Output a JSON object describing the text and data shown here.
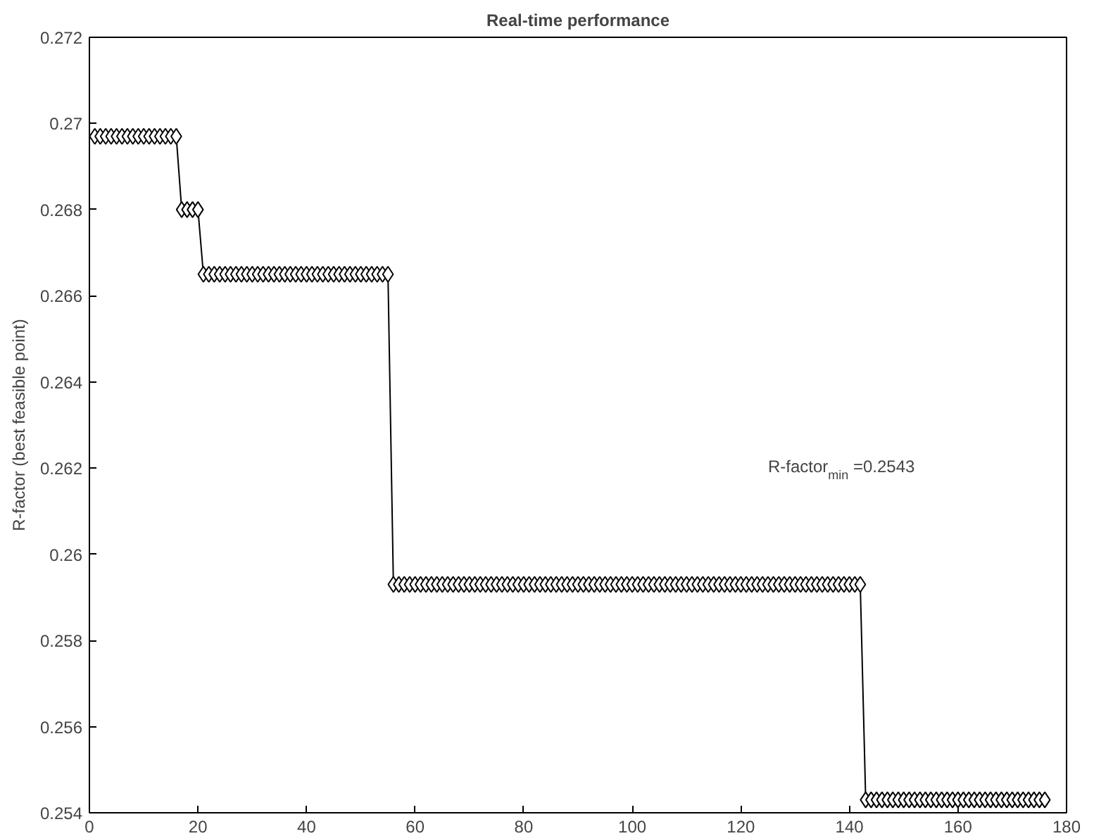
{
  "chart_data": {
    "type": "line",
    "title": "Real-time performance",
    "ylabel": "R-factor (best feasible point)",
    "x": [
      1,
      2,
      3,
      4,
      5,
      6,
      7,
      8,
      9,
      10,
      11,
      12,
      13,
      14,
      15,
      16,
      17,
      18,
      19,
      20,
      21,
      22,
      23,
      24,
      25,
      26,
      27,
      28,
      29,
      30,
      31,
      32,
      33,
      34,
      35,
      36,
      37,
      38,
      39,
      40,
      41,
      42,
      43,
      44,
      45,
      46,
      47,
      48,
      49,
      50,
      51,
      52,
      53,
      54,
      55,
      56,
      57,
      58,
      59,
      60,
      61,
      62,
      63,
      64,
      65,
      66,
      67,
      68,
      69,
      70,
      71,
      72,
      73,
      74,
      75,
      76,
      77,
      78,
      79,
      80,
      81,
      82,
      83,
      84,
      85,
      86,
      87,
      88,
      89,
      90,
      91,
      92,
      93,
      94,
      95,
      96,
      97,
      98,
      99,
      100,
      101,
      102,
      103,
      104,
      105,
      106,
      107,
      108,
      109,
      110,
      111,
      112,
      113,
      114,
      115,
      116,
      117,
      118,
      119,
      120,
      121,
      122,
      123,
      124,
      125,
      126,
      127,
      128,
      129,
      130,
      131,
      132,
      133,
      134,
      135,
      136,
      137,
      138,
      139,
      140,
      141,
      142,
      143,
      144,
      145,
      146,
      147,
      148,
      149,
      150,
      151,
      152,
      153,
      154,
      155,
      156,
      157,
      158,
      159,
      160,
      161,
      162,
      163,
      164,
      165,
      166,
      167,
      168,
      169,
      170,
      171,
      172,
      173,
      174,
      175,
      176
    ],
    "series": [
      {
        "color": "#000000",
        "values": [
          0.2697,
          0.2697,
          0.2697,
          0.2697,
          0.2697,
          0.2697,
          0.2697,
          0.2697,
          0.2697,
          0.2697,
          0.2697,
          0.2697,
          0.2697,
          0.2697,
          0.2697,
          0.2697,
          0.268,
          0.268,
          0.268,
          0.268,
          0.2665,
          0.2665,
          0.2665,
          0.2665,
          0.2665,
          0.2665,
          0.2665,
          0.2665,
          0.2665,
          0.2665,
          0.2665,
          0.2665,
          0.2665,
          0.2665,
          0.2665,
          0.2665,
          0.2665,
          0.2665,
          0.2665,
          0.2665,
          0.2665,
          0.2665,
          0.2665,
          0.2665,
          0.2665,
          0.2665,
          0.2665,
          0.2665,
          0.2665,
          0.2665,
          0.2665,
          0.2665,
          0.2665,
          0.2665,
          0.2665,
          0.2593,
          0.2593,
          0.2593,
          0.2593,
          0.2593,
          0.2593,
          0.2593,
          0.2593,
          0.2593,
          0.2593,
          0.2593,
          0.2593,
          0.2593,
          0.2593,
          0.2593,
          0.2593,
          0.2593,
          0.2593,
          0.2593,
          0.2593,
          0.2593,
          0.2593,
          0.2593,
          0.2593,
          0.2593,
          0.2593,
          0.2593,
          0.2593,
          0.2593,
          0.2593,
          0.2593,
          0.2593,
          0.2593,
          0.2593,
          0.2593,
          0.2593,
          0.2593,
          0.2593,
          0.2593,
          0.2593,
          0.2593,
          0.2593,
          0.2593,
          0.2593,
          0.2593,
          0.2593,
          0.2593,
          0.2593,
          0.2593,
          0.2593,
          0.2593,
          0.2593,
          0.2593,
          0.2593,
          0.2593,
          0.2593,
          0.2593,
          0.2593,
          0.2593,
          0.2593,
          0.2593,
          0.2593,
          0.2593,
          0.2593,
          0.2593,
          0.2593,
          0.2593,
          0.2593,
          0.2593,
          0.2593,
          0.2593,
          0.2593,
          0.2593,
          0.2593,
          0.2593,
          0.2593,
          0.2593,
          0.2593,
          0.2593,
          0.2593,
          0.2593,
          0.2593,
          0.2593,
          0.2593,
          0.2593,
          0.2593,
          0.2593,
          0.2543,
          0.2543,
          0.2543,
          0.2543,
          0.2543,
          0.2543,
          0.2543,
          0.2543,
          0.2543,
          0.2543,
          0.2543,
          0.2543,
          0.2543,
          0.2543,
          0.2543,
          0.2543,
          0.2543,
          0.2543,
          0.2543,
          0.2543,
          0.2543,
          0.2543,
          0.2543,
          0.2543,
          0.2543,
          0.2543,
          0.2543,
          0.2543,
          0.2543,
          0.2543,
          0.2543,
          0.2543,
          0.2543,
          0.2543
        ]
      }
    ],
    "xlim": [
      0,
      180
    ],
    "ylim": [
      0.254,
      0.272
    ],
    "xticks": [
      0,
      20,
      40,
      60,
      80,
      100,
      120,
      140,
      160,
      180
    ],
    "yticks": [
      0.254,
      0.256,
      0.258,
      0.26,
      0.262,
      0.264,
      0.266,
      0.268,
      0.27,
      0.272
    ],
    "marker": "diamond",
    "line_style": "solid",
    "grid": false,
    "annotations": [
      "R-factor$_{min}$ =0.2543"
    ]
  }
}
